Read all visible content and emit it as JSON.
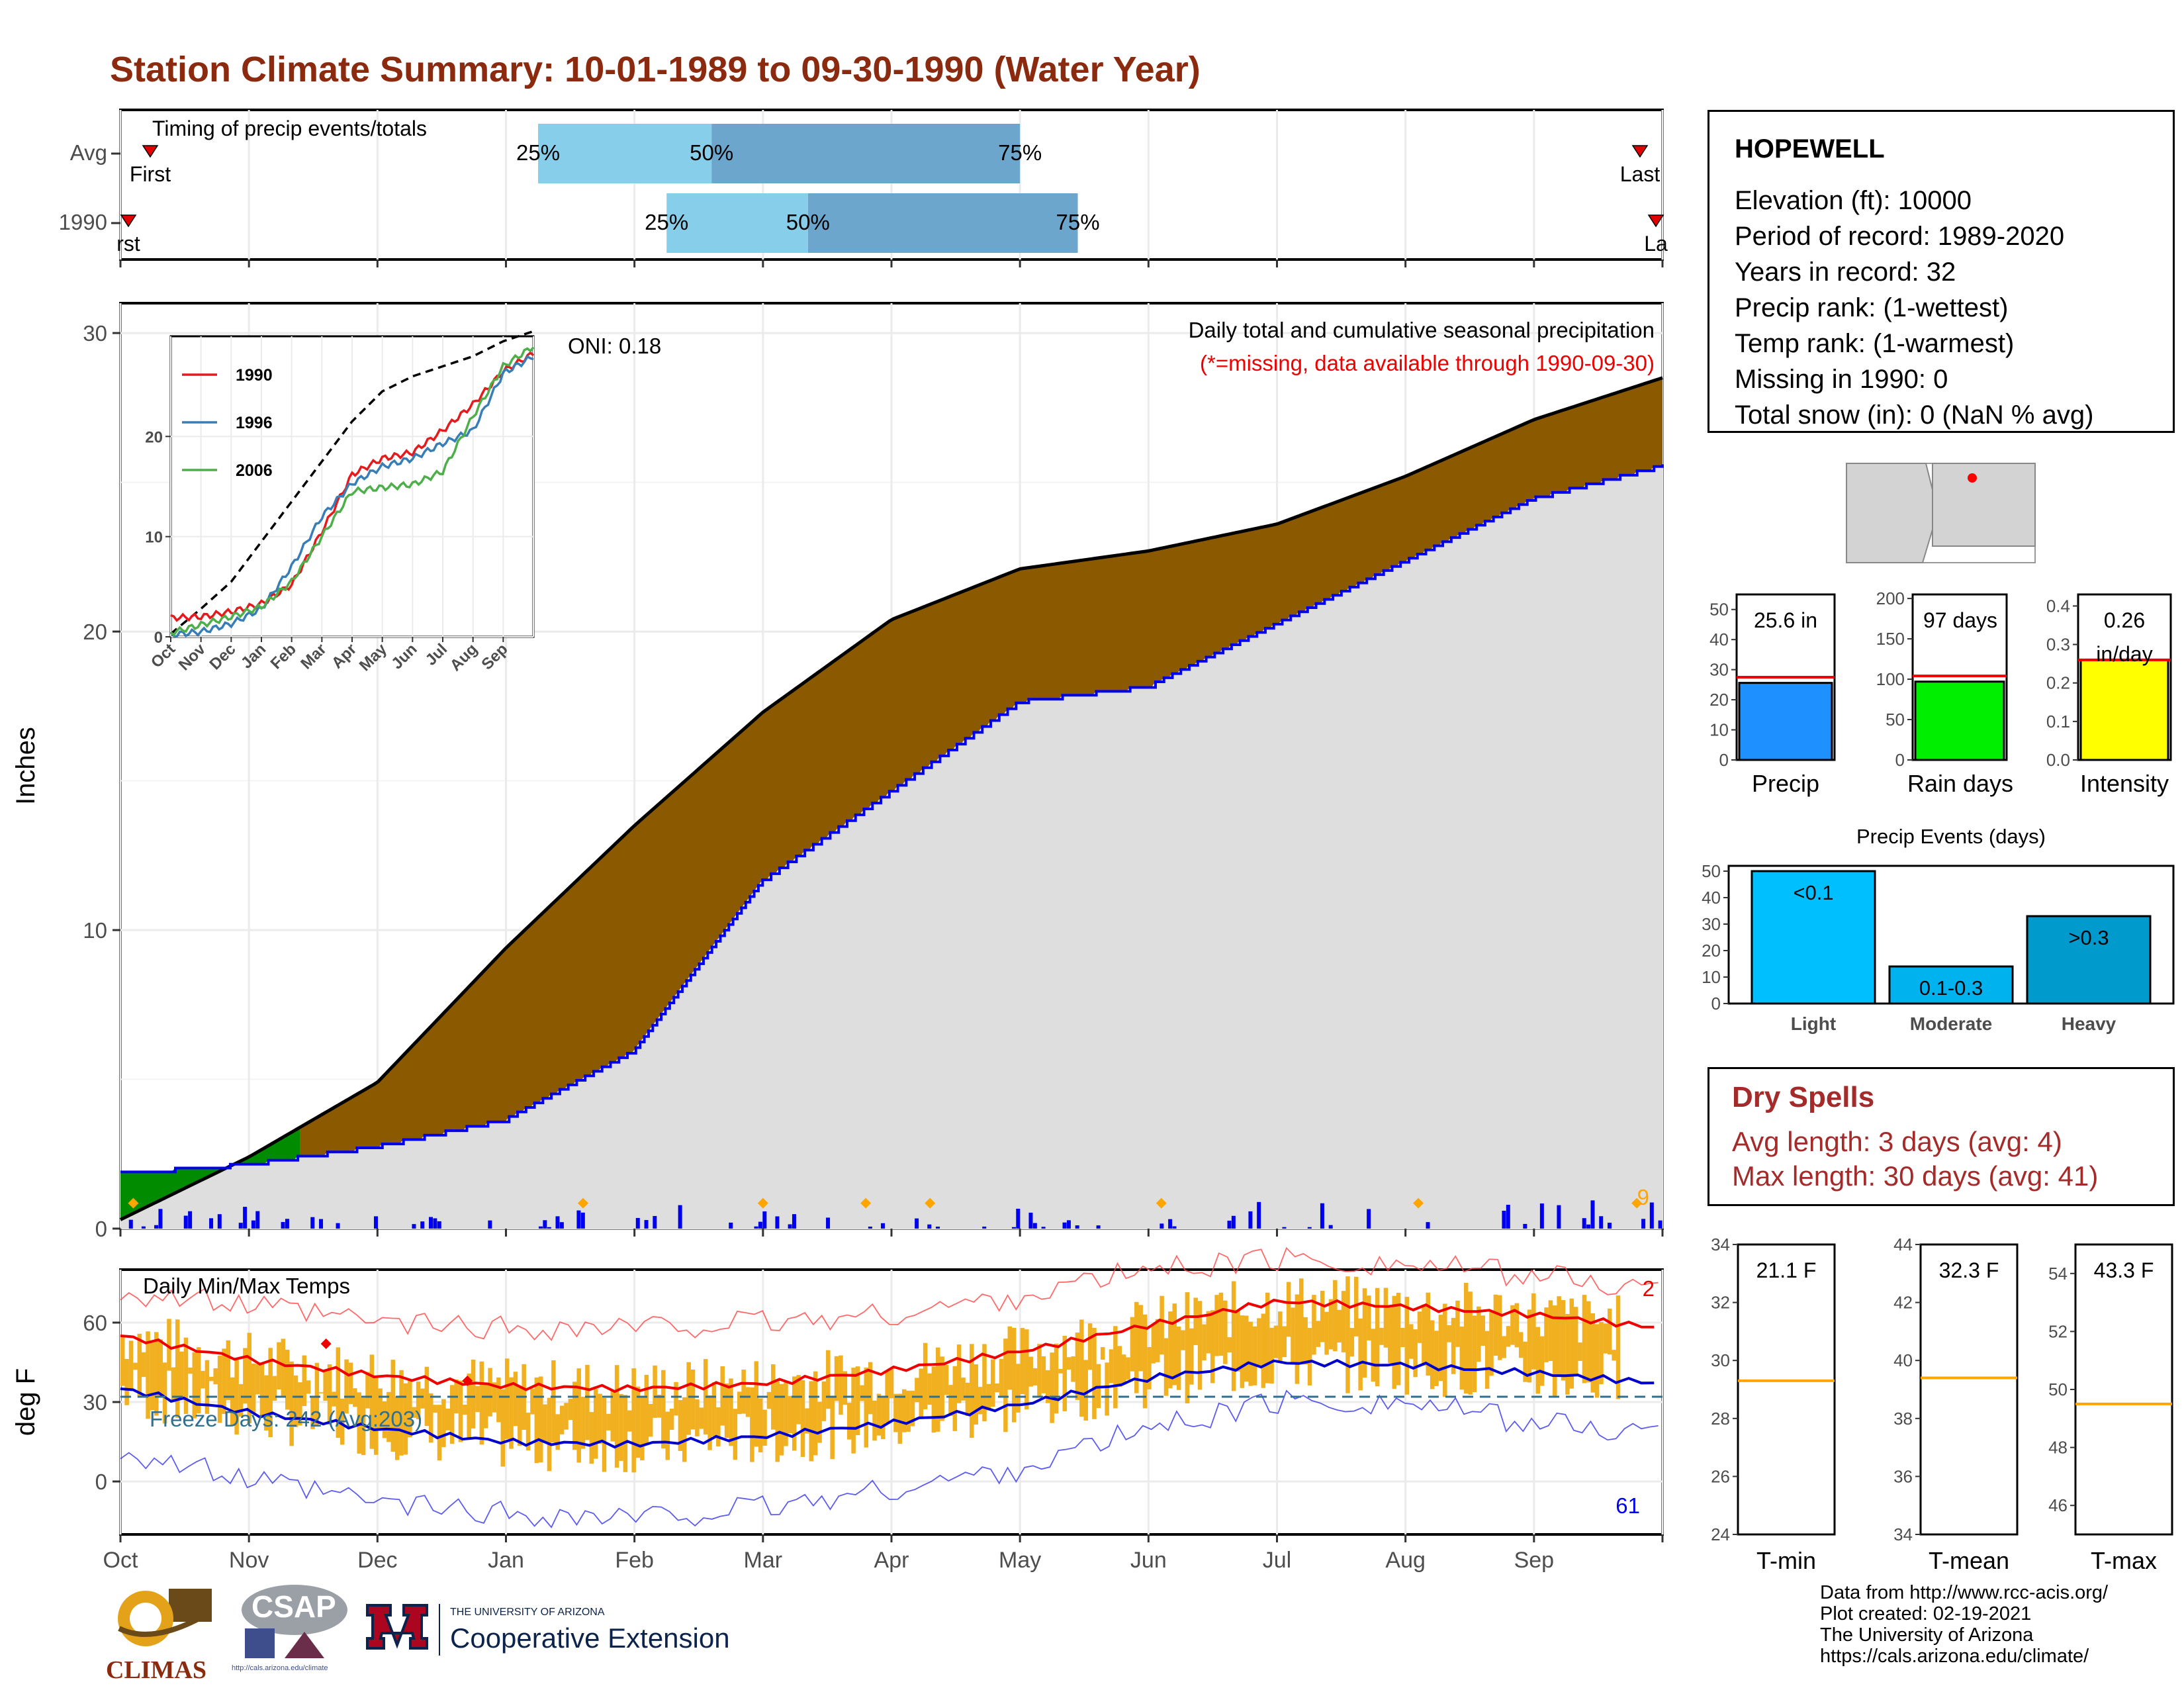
{
  "title": "Station Climate Summary: 10-01-1989 to 09-30-1990 (Water Year)",
  "timing": {
    "label": "Timing of precip events/totals",
    "rows": [
      {
        "name": "Avg",
        "first_label": "First",
        "last_label": "Last",
        "q25": "25%",
        "q50": "50%",
        "q75": "75%",
        "p25_month": 3.25,
        "p50_month": 4.6,
        "p75_month": 7.0
      },
      {
        "name": "1990",
        "first_label": "rst",
        "last_label": "La",
        "q25": "25%",
        "q50": "50%",
        "q75": "75%",
        "p25_month": 4.25,
        "p50_month": 5.35,
        "p75_month": 7.45
      }
    ]
  },
  "precip_panel": {
    "ylabel": "Inches",
    "header": "Daily total and cumulative seasonal precipitation",
    "missing_note": "(*=missing, data available through 1990-09-30)",
    "oni": "ONI: 0.18",
    "count_label": "9",
    "yticks": [
      "0",
      "10",
      "20",
      "30"
    ]
  },
  "temp_panel": {
    "ylabel": "deg F",
    "header": "Daily Min/Max Temps",
    "freeze": "Freeze Days: 242 (Avg:203)",
    "max_count": "2",
    "min_count": "61",
    "yticks": [
      "0",
      "30",
      "60"
    ]
  },
  "months": [
    "Oct",
    "Nov",
    "Dec",
    "Jan",
    "Feb",
    "Mar",
    "Apr",
    "May",
    "Jun",
    "Jul",
    "Aug",
    "Sep"
  ],
  "inset": {
    "xticks": [
      "Oct",
      "Nov",
      "Dec",
      "Jan",
      "Feb",
      "Mar",
      "Apr",
      "May",
      "Jun",
      "Jul",
      "Aug",
      "Sep"
    ],
    "yticks": [
      "0",
      "10",
      "20"
    ],
    "legend": [
      "1990",
      "1996",
      "2006"
    ]
  },
  "station": {
    "name": "HOPEWELL",
    "elevation": "Elevation (ft): 10000",
    "period": "Period of record: 1989-2020",
    "years": "Years in record: 32",
    "precip_rank": "Precip rank:  (1-wettest)",
    "temp_rank": "Temp rank:  (1-warmest)",
    "missing": "Missing in 1990: 0",
    "snow": "Total snow (in): 0 (NaN % avg)"
  },
  "mini_bars": [
    {
      "label": "Precip",
      "value_text": "25.6 in",
      "value": 25.6,
      "avg": 27.5,
      "max": 55,
      "color": "#1e90ff",
      "ticks": [
        "0",
        "10",
        "20",
        "30",
        "40",
        "50"
      ]
    },
    {
      "label": "Rain days",
      "value_text": "97 days",
      "value": 97,
      "avg": 104,
      "max": 205,
      "color": "#00ee00",
      "ticks": [
        "0",
        "50",
        "100",
        "150",
        "200"
      ]
    },
    {
      "label": "Intensity",
      "value_text": "0.26",
      "value_text2": "in/day",
      "value": 0.26,
      "avg": 0.26,
      "max": 0.43,
      "color": "#ffff00",
      "ticks": [
        "0.0",
        "0.1",
        "0.2",
        "0.3",
        "0.4"
      ]
    }
  ],
  "events": {
    "title": "Precip Events (days)",
    "ticks": [
      "0",
      "10",
      "20",
      "30",
      "40",
      "50"
    ],
    "bars": [
      {
        "label": "Light",
        "value_text": "<0.1",
        "value": 50,
        "color": "#00bfff"
      },
      {
        "label": "Moderate",
        "value_text": "0.1-0.3",
        "value": 14,
        "color": "#00b2ee"
      },
      {
        "label": "Heavy",
        "value_text": ">0.3",
        "value": 33,
        "color": "#009acd"
      }
    ]
  },
  "dry_spells": {
    "title": "Dry Spells",
    "avg": "Avg length: 3 days (avg: 4)",
    "max": "Max length: 30 days (avg: 41)"
  },
  "temp_boxes": [
    {
      "label": "T-min",
      "value_text": "21.1 F",
      "ticks": [
        "24",
        "26",
        "28",
        "30",
        "32",
        "34"
      ],
      "lo": 24,
      "hi": 34,
      "line": 29.3
    },
    {
      "label": "T-mean",
      "value_text": "32.3 F",
      "ticks": [
        "34",
        "36",
        "38",
        "40",
        "42",
        "44"
      ],
      "lo": 34,
      "hi": 44,
      "line": 39.4
    },
    {
      "label": "T-max",
      "value_text": "43.3 F",
      "ticks": [
        "46",
        "48",
        "50",
        "52",
        "54"
      ],
      "lo": 45,
      "hi": 55,
      "line": 49.5
    }
  ],
  "credits": [
    "Data from http://www.rcc-acis.org/",
    "Plot created: 02-19-2021",
    "The University of Arizona",
    "https://cals.arizona.edu/climate/"
  ],
  "logos": {
    "climas": "CLIMAS",
    "csap": "CSAP",
    "csap_url": "http://cals.arizona.edu/climate",
    "ua_small": "THE UNIVERSITY OF ARIZONA",
    "ua_big": "Cooperative Extension"
  },
  "chart_data": [
    {
      "type": "area",
      "title": "Daily total and cumulative seasonal precipitation",
      "ylabel": "Inches",
      "ylim": [
        0,
        31
      ],
      "x": [
        "Oct",
        "Nov",
        "Dec",
        "Jan",
        "Feb",
        "Mar",
        "Apr",
        "May",
        "Jun",
        "Jul",
        "Aug",
        "Sep",
        "Sep-end"
      ],
      "series": [
        {
          "name": "average cumulative",
          "values": [
            0.3,
            2.4,
            4.9,
            9.4,
            13.5,
            17.3,
            20.4,
            22.1,
            22.7,
            23.6,
            25.2,
            27.1,
            28.5
          ]
        },
        {
          "name": "1990 cumulative",
          "values": [
            1.9,
            2.2,
            2.8,
            3.7,
            6.0,
            11.7,
            14.7,
            17.7,
            18.2,
            20.3,
            22.4,
            24.5,
            25.6
          ]
        }
      ]
    },
    {
      "type": "line",
      "title": "",
      "xlabel": "",
      "ylabel": "",
      "ylim": [
        0,
        30
      ],
      "x": [
        "Oct",
        "Nov",
        "Dec",
        "Jan",
        "Feb",
        "Mar",
        "Apr",
        "May",
        "Jun",
        "Jul",
        "Aug",
        "Sep",
        "Sep-end"
      ],
      "series": [
        {
          "values": [
            0.3,
            2.8,
            5.5,
            9.5,
            13.5,
            17.5,
            21.5,
            24.5,
            26.0,
            27.0,
            28.0,
            29.5,
            30.5
          ]
        },
        {
          "name": "1990",
          "values": [
            1.9,
            2.0,
            2.5,
            3.3,
            5.2,
            10.5,
            16.2,
            17.8,
            18.4,
            20.6,
            23.2,
            26.5,
            28.3
          ]
        },
        {
          "name": "1996",
          "values": [
            0.2,
            0.5,
            1.3,
            2.8,
            7.0,
            12.0,
            15.3,
            17.0,
            17.8,
            19.3,
            20.6,
            26.3,
            28.0
          ]
        },
        {
          "name": "2006",
          "values": [
            0.4,
            1.2,
            2.0,
            3.0,
            5.5,
            10.0,
            14.5,
            14.9,
            15.2,
            16.5,
            22.0,
            27.0,
            29.0
          ]
        }
      ]
    },
    {
      "type": "line",
      "title": "Daily Min/Max Temps",
      "ylabel": "deg F",
      "ylim": [
        -20,
        80
      ],
      "x": [
        "Oct",
        "Nov",
        "Dec",
        "Jan",
        "Feb",
        "Mar",
        "Apr",
        "May",
        "Jun",
        "Jul",
        "Aug",
        "Sep",
        "Sep-end"
      ],
      "series": [
        {
          "name": "avg max",
          "values": [
            55,
            46,
            40,
            36,
            35,
            37,
            42,
            49,
            59,
            68,
            66,
            63,
            58
          ]
        },
        {
          "name": "avg min",
          "values": [
            35,
            26,
            20,
            15,
            14,
            17,
            22,
            29,
            39,
            45,
            44,
            41,
            37
          ]
        },
        {
          "name": "record max",
          "values": [
            72,
            66,
            60,
            58,
            58,
            60,
            63,
            70,
            80,
            84,
            82,
            78,
            72
          ]
        },
        {
          "name": "record min",
          "values": [
            12,
            0,
            -8,
            -12,
            -14,
            -10,
            -3,
            5,
            20,
            30,
            30,
            22,
            18
          ]
        }
      ]
    },
    {
      "type": "bar",
      "title": "",
      "categories": [
        "Precip",
        "Rain days",
        "Intensity"
      ],
      "values": [
        25.6,
        97,
        0.26
      ]
    },
    {
      "type": "bar",
      "title": "Precip Events (days)",
      "categories": [
        "Light",
        "Moderate",
        "Heavy"
      ],
      "values": [
        50,
        14,
        33
      ]
    }
  ]
}
